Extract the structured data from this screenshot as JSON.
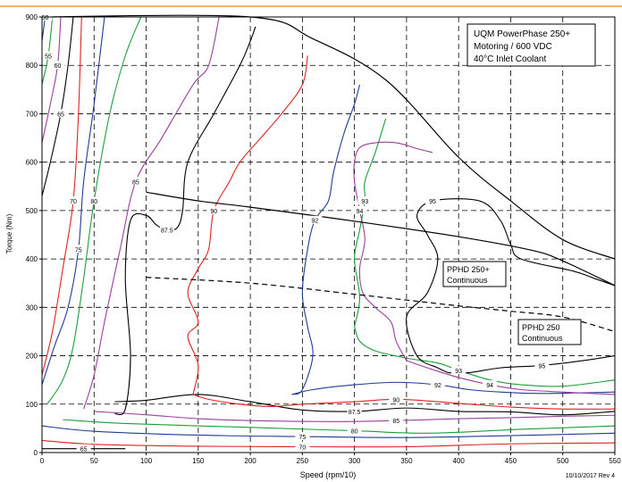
{
  "colors": {
    "accent_rule": "#f2b35a"
  },
  "chart_data": {
    "type": "line",
    "title": "",
    "xlabel": "Speed (rpm/10)",
    "ylabel": "Torque (Nm)",
    "xlim": [
      0,
      550
    ],
    "ylim": [
      0,
      900
    ],
    "xticks": [
      0,
      50,
      100,
      150,
      200,
      250,
      300,
      350,
      400,
      450,
      500,
      550
    ],
    "yticks": [
      0,
      100,
      200,
      300,
      400,
      500,
      600,
      700,
      800,
      900
    ],
    "grid": "dashed",
    "info_box": [
      "UQM PowerPhase 250+",
      "Motoring / 600 VDC",
      "40°C Inlet Coolant"
    ],
    "footer": "10/10/2017 Rev 4",
    "series": [
      {
        "kind": "envelope",
        "color": "#000000",
        "points": [
          [
            0,
            900
          ],
          [
            200,
            900
          ],
          [
            260,
            855
          ],
          [
            330,
            770
          ],
          [
            400,
            610
          ],
          [
            450,
            520
          ],
          [
            500,
            440
          ],
          [
            550,
            400
          ]
        ]
      },
      {
        "name": "PPHD 250+ Continuous",
        "kind": "continuous",
        "color": "#000000",
        "dash": "",
        "points": [
          [
            100,
            538
          ],
          [
            150,
            520
          ],
          [
            200,
            507
          ],
          [
            300,
            478
          ],
          [
            400,
            446
          ],
          [
            470,
            418
          ],
          [
            500,
            396
          ],
          [
            550,
            345
          ]
        ]
      },
      {
        "name": "PPHD 250 Continuous",
        "kind": "continuous",
        "color": "#000000",
        "dash": "6,4",
        "points": [
          [
            100,
            362
          ],
          [
            200,
            350
          ],
          [
            300,
            327
          ],
          [
            350,
            315
          ],
          [
            400,
            303
          ],
          [
            450,
            292
          ],
          [
            500,
            280
          ],
          [
            550,
            250
          ]
        ]
      },
      {
        "label": "65",
        "color": "#000000",
        "points": [
          [
            0,
            530
          ],
          [
            8,
            600
          ],
          [
            18,
            700
          ],
          [
            25,
            800
          ],
          [
            30,
            900
          ]
        ]
      },
      {
        "label": "60",
        "color": "#9b3f9b",
        "points": [
          [
            0,
            640
          ],
          [
            8,
            720
          ],
          [
            15,
            800
          ],
          [
            18,
            900
          ]
        ]
      },
      {
        "label": "55",
        "color": "#1a9e3a",
        "points": [
          [
            0,
            760
          ],
          [
            6,
            820
          ],
          [
            10,
            900
          ]
        ]
      },
      {
        "label": "50",
        "color": "#1f3c96",
        "points": [
          [
            0,
            850
          ],
          [
            3,
            900
          ]
        ]
      },
      {
        "label": "65",
        "color": "#000000",
        "points": [
          [
            0,
            8
          ],
          [
            40,
            8
          ],
          [
            80,
            8
          ]
        ]
      },
      {
        "label": "70",
        "color": "#e0231f",
        "points": [
          [
            0,
            160
          ],
          [
            10,
            250
          ],
          [
            20,
            380
          ],
          [
            30,
            520
          ],
          [
            35,
            700
          ],
          [
            38,
            900
          ]
        ]
      },
      {
        "label": "70",
        "color": "#e0231f",
        "points": [
          [
            0,
            25
          ],
          [
            50,
            17
          ],
          [
            150,
            13
          ],
          [
            250,
            12
          ],
          [
            350,
            12
          ],
          [
            450,
            18
          ],
          [
            550,
            20
          ]
        ]
      },
      {
        "label": "75",
        "color": "#1f3c96",
        "points": [
          [
            0,
            140
          ],
          [
            12,
            220
          ],
          [
            25,
            300
          ],
          [
            35,
            420
          ],
          [
            40,
            560
          ],
          [
            50,
            720
          ],
          [
            60,
            900
          ]
        ]
      },
      {
        "label": "75",
        "color": "#1f3c96",
        "points": [
          [
            0,
            55
          ],
          [
            50,
            44
          ],
          [
            150,
            36
          ],
          [
            250,
            33
          ],
          [
            350,
            31
          ],
          [
            430,
            34
          ],
          [
            550,
            40
          ]
        ]
      },
      {
        "label": "80",
        "color": "#1a9e3a",
        "points": [
          [
            5,
            100
          ],
          [
            20,
            150
          ],
          [
            30,
            220
          ],
          [
            40,
            360
          ],
          [
            50,
            520
          ],
          [
            65,
            700
          ],
          [
            80,
            820
          ],
          [
            95,
            900
          ]
        ]
      },
      {
        "label": "80",
        "color": "#1a9e3a",
        "points": [
          [
            20,
            68
          ],
          [
            80,
            60
          ],
          [
            200,
            52
          ],
          [
            300,
            45
          ],
          [
            370,
            40
          ],
          [
            460,
            48
          ],
          [
            550,
            55
          ]
        ]
      },
      {
        "label": "85",
        "color": "#9b3f9b",
        "points": [
          [
            40,
            90
          ],
          [
            50,
            160
          ],
          [
            60,
            270
          ],
          [
            75,
            420
          ],
          [
            90,
            560
          ],
          [
            115,
            650
          ],
          [
            145,
            760
          ],
          [
            160,
            800
          ],
          [
            170,
            900
          ]
        ]
      },
      {
        "label": "85",
        "color": "#9b3f9b",
        "points": [
          [
            50,
            85
          ],
          [
            100,
            78
          ],
          [
            150,
            70
          ],
          [
            200,
            66
          ],
          [
            280,
            64
          ],
          [
            340,
            66
          ],
          [
            400,
            70
          ],
          [
            450,
            72
          ],
          [
            500,
            75
          ],
          [
            550,
            77
          ]
        ]
      },
      {
        "label": "87.5",
        "color": "#000000",
        "points": [
          [
            70,
            80
          ],
          [
            80,
            90
          ],
          [
            85,
            200
          ],
          [
            80,
            360
          ],
          [
            85,
            480
          ],
          [
            100,
            490
          ],
          [
            110,
            470
          ],
          [
            120,
            460
          ],
          [
            130,
            465
          ],
          [
            135,
            500
          ],
          [
            140,
            600
          ],
          [
            165,
            700
          ],
          [
            190,
            800
          ],
          [
            200,
            850
          ],
          [
            205,
            880
          ]
        ]
      },
      {
        "label": "87.5",
        "color": "#000000",
        "points": [
          [
            70,
            105
          ],
          [
            100,
            108
          ],
          [
            150,
            120
          ],
          [
            200,
            105
          ],
          [
            250,
            88
          ],
          [
            300,
            85
          ],
          [
            350,
            92
          ],
          [
            400,
            85
          ],
          [
            450,
            84
          ],
          [
            500,
            78
          ],
          [
            550,
            85
          ]
        ]
      },
      {
        "label": "90",
        "color": "#e0231f",
        "points": [
          [
            145,
            120
          ],
          [
            150,
            180
          ],
          [
            140,
            240
          ],
          [
            150,
            270
          ],
          [
            140,
            330
          ],
          [
            150,
            380
          ],
          [
            160,
            420
          ],
          [
            165,
            500
          ],
          [
            180,
            560
          ],
          [
            190,
            600
          ],
          [
            210,
            650
          ],
          [
            230,
            700
          ],
          [
            250,
            760
          ],
          [
            255,
            820
          ]
        ]
      },
      {
        "label": "90",
        "color": "#e0231f",
        "points": [
          [
            145,
            120
          ],
          [
            160,
            110
          ],
          [
            190,
            100
          ],
          [
            220,
            95
          ],
          [
            250,
            100
          ],
          [
            300,
            105
          ],
          [
            340,
            110
          ],
          [
            380,
            105
          ],
          [
            410,
            100
          ],
          [
            450,
            94
          ],
          [
            500,
            90
          ],
          [
            550,
            90
          ]
        ]
      },
      {
        "label": "92",
        "color": "#1f3c96",
        "points": [
          [
            240,
            120
          ],
          [
            250,
            130
          ],
          [
            260,
            200
          ],
          [
            255,
            260
          ],
          [
            250,
            330
          ],
          [
            255,
            420
          ],
          [
            262,
            480
          ],
          [
            275,
            520
          ],
          [
            280,
            580
          ],
          [
            290,
            660
          ],
          [
            300,
            720
          ],
          [
            305,
            760
          ]
        ]
      },
      {
        "label": "92",
        "color": "#1f3c96",
        "points": [
          [
            240,
            120
          ],
          [
            260,
            130
          ],
          [
            300,
            140
          ],
          [
            340,
            145
          ],
          [
            380,
            140
          ],
          [
            410,
            130
          ],
          [
            440,
            125
          ],
          [
            480,
            122
          ],
          [
            550,
            125
          ]
        ]
      },
      {
        "label": "93",
        "color": "#1a9e3a",
        "points": [
          [
            300,
            260
          ],
          [
            305,
            230
          ],
          [
            320,
            210
          ],
          [
            350,
            195
          ],
          [
            380,
            185
          ],
          [
            400,
            170
          ],
          [
            430,
            150
          ],
          [
            460,
            140
          ],
          [
            500,
            137
          ],
          [
            550,
            150
          ]
        ]
      },
      {
        "label": "93",
        "color": "#1a9e3a",
        "points": [
          [
            300,
            260
          ],
          [
            305,
            320
          ],
          [
            300,
            400
          ],
          [
            305,
            460
          ],
          [
            310,
            520
          ],
          [
            310,
            560
          ],
          [
            320,
            620
          ],
          [
            330,
            690
          ]
        ]
      },
      {
        "label": "94",
        "color": "#9b3f9b",
        "points": [
          [
            350,
            190
          ],
          [
            340,
            230
          ],
          [
            335,
            270
          ],
          [
            320,
            300
          ],
          [
            308,
            330
          ],
          [
            305,
            380
          ],
          [
            310,
            440
          ],
          [
            305,
            500
          ],
          [
            300,
            560
          ],
          [
            300,
            600
          ],
          [
            305,
            630
          ],
          [
            320,
            640
          ],
          [
            340,
            640
          ],
          [
            360,
            628
          ],
          [
            375,
            620
          ]
        ]
      },
      {
        "label": "94",
        "color": "#9b3f9b",
        "points": [
          [
            350,
            190
          ],
          [
            370,
            175
          ],
          [
            400,
            155
          ],
          [
            430,
            140
          ],
          [
            460,
            130
          ],
          [
            500,
            125
          ],
          [
            550,
            120
          ]
        ]
      },
      {
        "label": "95",
        "color": "#000000",
        "points": [
          [
            390,
            165
          ],
          [
            380,
            175
          ],
          [
            360,
            200
          ],
          [
            350,
            280
          ],
          [
            370,
            330
          ],
          [
            380,
            400
          ],
          [
            370,
            450
          ],
          [
            360,
            490
          ],
          [
            375,
            520
          ],
          [
            420,
            520
          ],
          [
            440,
            480
          ],
          [
            450,
            430
          ],
          [
            460,
            400
          ],
          [
            510,
            375
          ],
          [
            530,
            360
          ],
          [
            550,
            345
          ]
        ]
      },
      {
        "label": "95",
        "color": "#000000",
        "points": [
          [
            390,
            165
          ],
          [
            410,
            165
          ],
          [
            440,
            175
          ],
          [
            480,
            180
          ],
          [
            520,
            190
          ],
          [
            550,
            200
          ]
        ]
      }
    ]
  }
}
